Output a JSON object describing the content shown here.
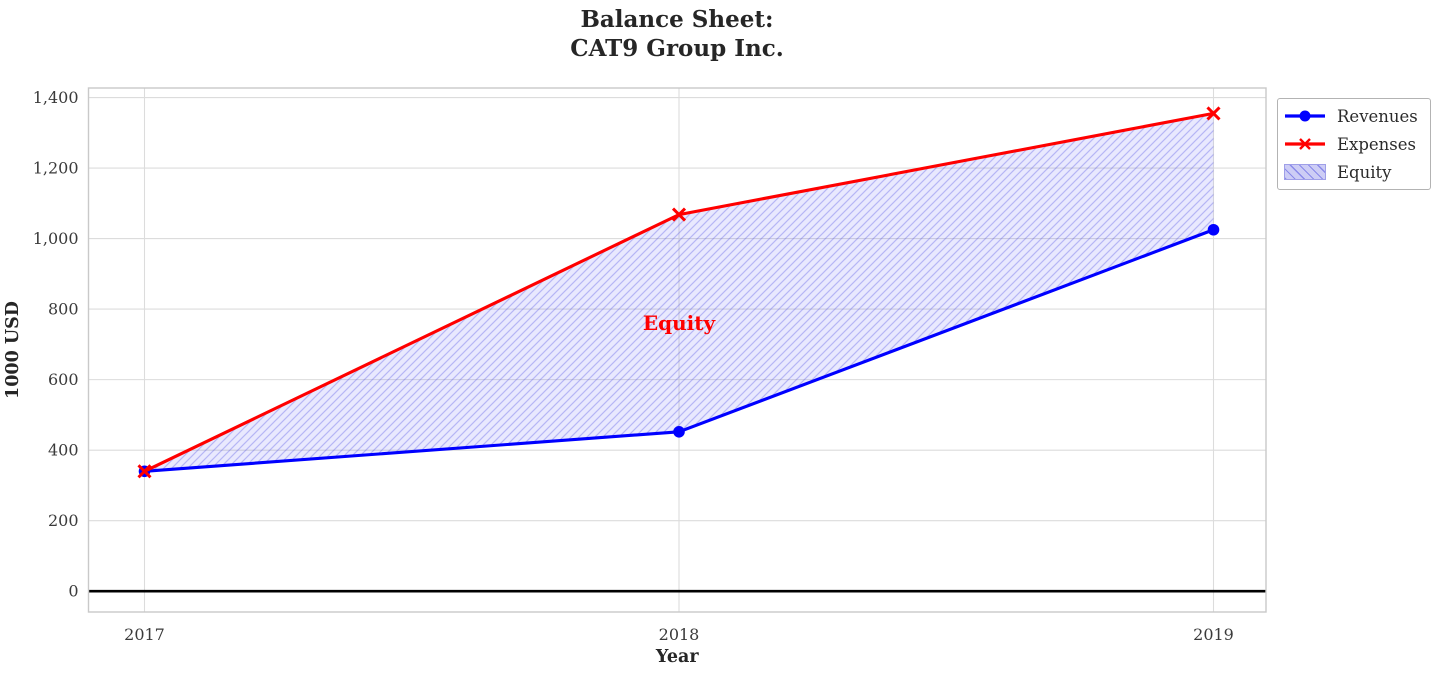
{
  "figure": {
    "title_line1": "Balance Sheet:",
    "title_line2": "CAT9 Group Inc."
  },
  "chart_data": {
    "type": "line",
    "title": "Balance Sheet: CAT9 Group Inc.",
    "xlabel": "Year",
    "ylabel": "1000 USD",
    "x": [
      2017,
      2018,
      2019
    ],
    "xtick_labels": [
      "2017",
      "2018",
      "2019"
    ],
    "yticks": [
      0,
      200,
      400,
      600,
      800,
      1000,
      1200,
      1400
    ],
    "ytick_labels": [
      "0",
      "200",
      "400",
      "600",
      "800",
      "1,000",
      "1,200",
      "1,400"
    ],
    "ylim": [
      -59,
      1427
    ],
    "grid": true,
    "zero_line": {
      "y": 0,
      "color": "#000000",
      "width": 2.6
    },
    "series": [
      {
        "name": "Revenues",
        "color": "#0000ff",
        "marker": "circle",
        "values": [
          340,
          452,
          1025
        ]
      },
      {
        "name": "Expenses",
        "color": "#ff0000",
        "marker": "x",
        "values": [
          340,
          1068,
          1355
        ]
      }
    ],
    "fill_between": {
      "name": "Equity",
      "between": [
        "Expenses",
        "Revenues"
      ],
      "fill_color": "rgba(82, 82, 245, 0.13)",
      "hatch": "//",
      "hatch_color": "rgba(64, 64, 225, 0.30)",
      "edge_color": "#9f9fe8"
    },
    "annotation": {
      "text": "Equity",
      "x": 2018,
      "y": 760,
      "color": "#ff0000"
    },
    "legend": {
      "position": "upper-right-outside",
      "entries": [
        "Revenues",
        "Expenses",
        "Equity"
      ]
    },
    "style": {
      "grid_color": "#dcdcdc",
      "spine_color": "#c9c9c9",
      "tick_label_color": "#3a3a3a",
      "text_color": "#262626"
    }
  }
}
